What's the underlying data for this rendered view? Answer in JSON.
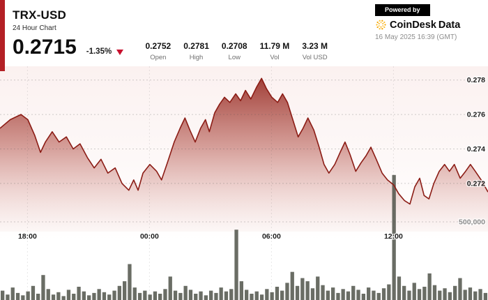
{
  "header": {
    "symbol": "TRX-USD",
    "subtitle": "24 Hour Chart",
    "price": "0.2715",
    "change": "-1.35%",
    "stats": [
      {
        "value": "0.2752",
        "label": "Open"
      },
      {
        "value": "0.2781",
        "label": "High"
      },
      {
        "value": "0.2708",
        "label": "Low"
      },
      {
        "value": "11.79 M",
        "label": "Vol"
      },
      {
        "value": "3.23 M",
        "label": "Vol USD"
      }
    ],
    "powered_by": "Powered by",
    "brand": {
      "primary": "CoinDesk",
      "secondary": "Data"
    },
    "timestamp": "16 May 2025 16:39 (GMT)"
  },
  "icons": {
    "change_direction": "triangle-down",
    "brand_logo": "dotted-circle"
  },
  "colors": {
    "accent": "#b32025",
    "line": "#8b1c15",
    "area_top": "#8e1e16",
    "area_mid": "#b04a40",
    "area_bottom": "#e0a49d",
    "volume": "#50544a",
    "grid": "#555555",
    "triangle_red": "#c8102e",
    "badge_bg": "#000000",
    "brand_orange": "#f7a600",
    "brand_amber": "#fdc133",
    "timestamp_gray": "#8d8d8d"
  },
  "chart_data": {
    "type": "area",
    "title": "TRX-USD 24 Hour Chart",
    "legend": false,
    "grid": "dashed",
    "x_axis": {
      "labels": [
        {
          "label": "18:00",
          "f": 0.0563
        },
        {
          "label": "00:00",
          "f": 0.3063
        },
        {
          "label": "06:00",
          "f": 0.5563
        },
        {
          "label": "12:00",
          "f": 0.8063
        }
      ]
    },
    "y_axis": {
      "ticks": [
        {
          "value": 0.278,
          "label": "0.278"
        },
        {
          "value": 0.276,
          "label": "0.276"
        },
        {
          "value": 0.274,
          "label": "0.274"
        },
        {
          "value": 0.272,
          "label": "0.272"
        }
      ],
      "ylim": [
        0.2692,
        0.2788
      ]
    },
    "volume_axis": {
      "gridline_value": 500000,
      "gridline_label": "500,000"
    },
    "price_series": [
      [
        0,
        0.2752
      ],
      [
        0.021,
        0.2757
      ],
      [
        0.043,
        0.276
      ],
      [
        0.057,
        0.2757
      ],
      [
        0.071,
        0.2748
      ],
      [
        0.083,
        0.2738
      ],
      [
        0.093,
        0.2744
      ],
      [
        0.107,
        0.275
      ],
      [
        0.121,
        0.2744
      ],
      [
        0.136,
        0.2747
      ],
      [
        0.15,
        0.274
      ],
      [
        0.164,
        0.2743
      ],
      [
        0.179,
        0.2735
      ],
      [
        0.193,
        0.2729
      ],
      [
        0.207,
        0.2734
      ],
      [
        0.221,
        0.2726
      ],
      [
        0.236,
        0.2729
      ],
      [
        0.25,
        0.272
      ],
      [
        0.264,
        0.2716
      ],
      [
        0.274,
        0.2722
      ],
      [
        0.283,
        0.2716
      ],
      [
        0.293,
        0.2726
      ],
      [
        0.307,
        0.2731
      ],
      [
        0.321,
        0.2727
      ],
      [
        0.331,
        0.2722
      ],
      [
        0.343,
        0.2732
      ],
      [
        0.357,
        0.2744
      ],
      [
        0.369,
        0.2752
      ],
      [
        0.379,
        0.2758
      ],
      [
        0.389,
        0.2751
      ],
      [
        0.4,
        0.2744
      ],
      [
        0.411,
        0.2752
      ],
      [
        0.421,
        0.2757
      ],
      [
        0.429,
        0.275
      ],
      [
        0.44,
        0.2761
      ],
      [
        0.45,
        0.2766
      ],
      [
        0.46,
        0.277
      ],
      [
        0.471,
        0.2767
      ],
      [
        0.483,
        0.2772
      ],
      [
        0.493,
        0.2768
      ],
      [
        0.503,
        0.2774
      ],
      [
        0.514,
        0.2769
      ],
      [
        0.526,
        0.2776
      ],
      [
        0.536,
        0.2781
      ],
      [
        0.546,
        0.2775
      ],
      [
        0.557,
        0.277
      ],
      [
        0.569,
        0.2767
      ],
      [
        0.579,
        0.2772
      ],
      [
        0.589,
        0.2767
      ],
      [
        0.6,
        0.2757
      ],
      [
        0.611,
        0.2747
      ],
      [
        0.621,
        0.2752
      ],
      [
        0.631,
        0.2758
      ],
      [
        0.643,
        0.2751
      ],
      [
        0.654,
        0.2741
      ],
      [
        0.664,
        0.2731
      ],
      [
        0.674,
        0.2726
      ],
      [
        0.686,
        0.2731
      ],
      [
        0.697,
        0.2738
      ],
      [
        0.707,
        0.2744
      ],
      [
        0.717,
        0.2737
      ],
      [
        0.729,
        0.2727
      ],
      [
        0.74,
        0.2732
      ],
      [
        0.75,
        0.2736
      ],
      [
        0.76,
        0.2741
      ],
      [
        0.771,
        0.2734
      ],
      [
        0.783,
        0.2726
      ],
      [
        0.794,
        0.2722
      ],
      [
        0.807,
        0.2719
      ],
      [
        0.817,
        0.2714
      ],
      [
        0.829,
        0.271
      ],
      [
        0.84,
        0.2708
      ],
      [
        0.85,
        0.2718
      ],
      [
        0.86,
        0.2723
      ],
      [
        0.869,
        0.2713
      ],
      [
        0.879,
        0.2711
      ],
      [
        0.889,
        0.272
      ],
      [
        0.9,
        0.2727
      ],
      [
        0.911,
        0.2731
      ],
      [
        0.921,
        0.2727
      ],
      [
        0.931,
        0.2731
      ],
      [
        0.943,
        0.2723
      ],
      [
        0.954,
        0.2727
      ],
      [
        0.964,
        0.2731
      ],
      [
        0.974,
        0.2727
      ],
      [
        0.986,
        0.2722
      ],
      [
        1,
        0.2715
      ]
    ],
    "volume_series": [
      60000,
      35000,
      80000,
      45000,
      30000,
      55000,
      90000,
      40000,
      160000,
      70000,
      35000,
      50000,
      25000,
      65000,
      40000,
      85000,
      55000,
      30000,
      45000,
      70000,
      50000,
      35000,
      60000,
      90000,
      120000,
      230000,
      80000,
      45000,
      60000,
      35000,
      55000,
      40000,
      70000,
      150000,
      60000,
      45000,
      90000,
      65000,
      40000,
      55000,
      30000,
      60000,
      45000,
      80000,
      55000,
      70000,
      450000,
      120000,
      65000,
      40000,
      55000,
      35000,
      70000,
      50000,
      85000,
      60000,
      110000,
      180000,
      90000,
      140000,
      120000,
      75000,
      150000,
      95000,
      60000,
      80000,
      45000,
      70000,
      55000,
      90000,
      65000,
      40000,
      80000,
      60000,
      45000,
      75000,
      100000,
      800000,
      150000,
      90000,
      60000,
      110000,
      70000,
      85000,
      170000,
      95000,
      60000,
      75000,
      50000,
      90000,
      140000,
      65000,
      80000,
      55000,
      70000,
      45000
    ]
  }
}
